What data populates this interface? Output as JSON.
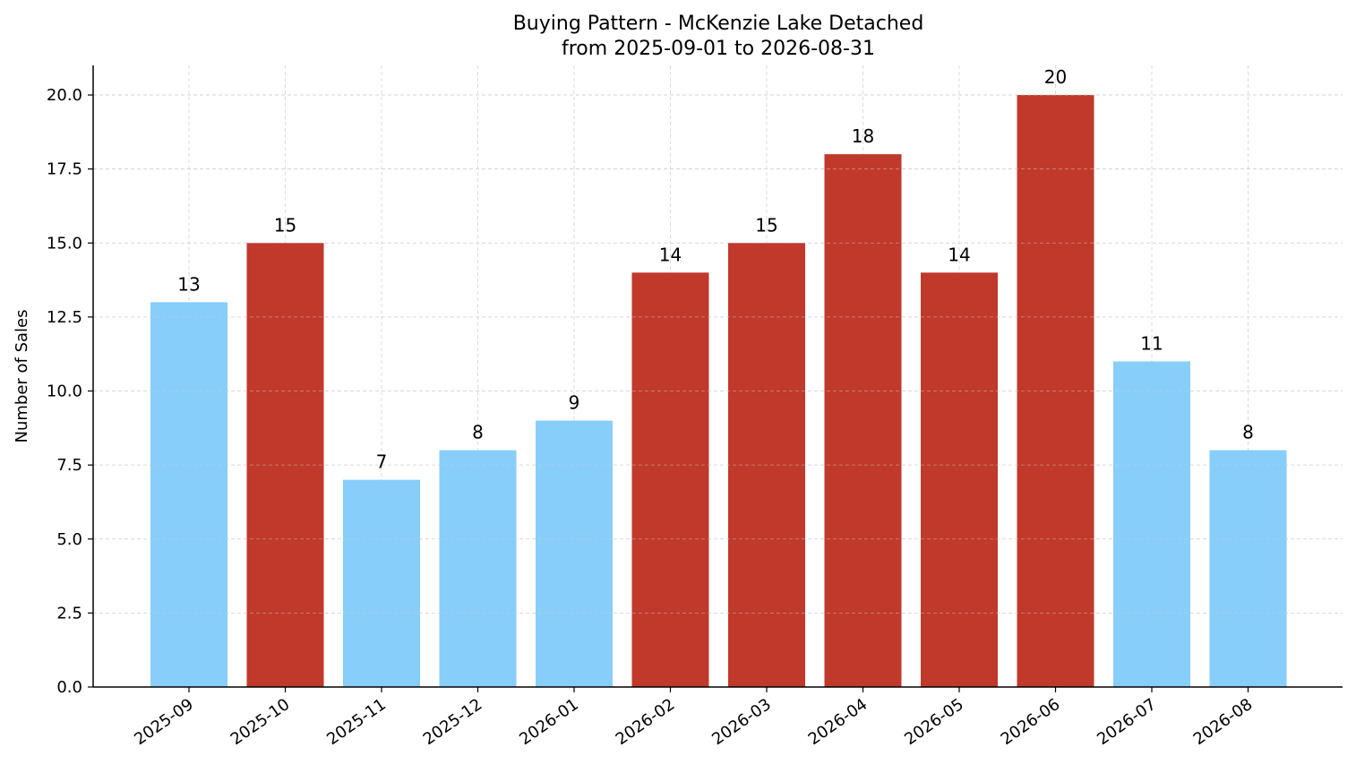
{
  "chart_data": {
    "type": "bar",
    "title": "Buying Pattern - McKenzie Lake Detached",
    "subtitle": "from 2025-09-01 to 2026-08-31",
    "xlabel": "",
    "ylabel": "Number of Sales",
    "categories": [
      "2025-09",
      "2025-10",
      "2025-11",
      "2025-12",
      "2026-01",
      "2026-02",
      "2026-03",
      "2026-04",
      "2026-05",
      "2026-06",
      "2026-07",
      "2026-08"
    ],
    "values": [
      13,
      15,
      7,
      8,
      9,
      14,
      15,
      18,
      14,
      20,
      11,
      8
    ],
    "data_labels": [
      "13",
      "15",
      "7",
      "8",
      "9",
      "14",
      "15",
      "18",
      "14",
      "20",
      "11",
      "8"
    ],
    "bar_colors": [
      "#87CEFA",
      "#C0392B",
      "#87CEFA",
      "#87CEFA",
      "#87CEFA",
      "#C0392B",
      "#C0392B",
      "#C0392B",
      "#C0392B",
      "#C0392B",
      "#87CEFA",
      "#87CEFA"
    ],
    "ylim": [
      0,
      21
    ],
    "yticks": [
      0,
      2.5,
      5,
      7.5,
      10,
      12.5,
      15,
      17.5,
      20
    ],
    "ytick_labels": [
      "0.0",
      "2.5",
      "5.0",
      "7.5",
      "10.0",
      "12.5",
      "15.0",
      "17.5",
      "20.0"
    ],
    "grid": true,
    "legend": "none"
  }
}
